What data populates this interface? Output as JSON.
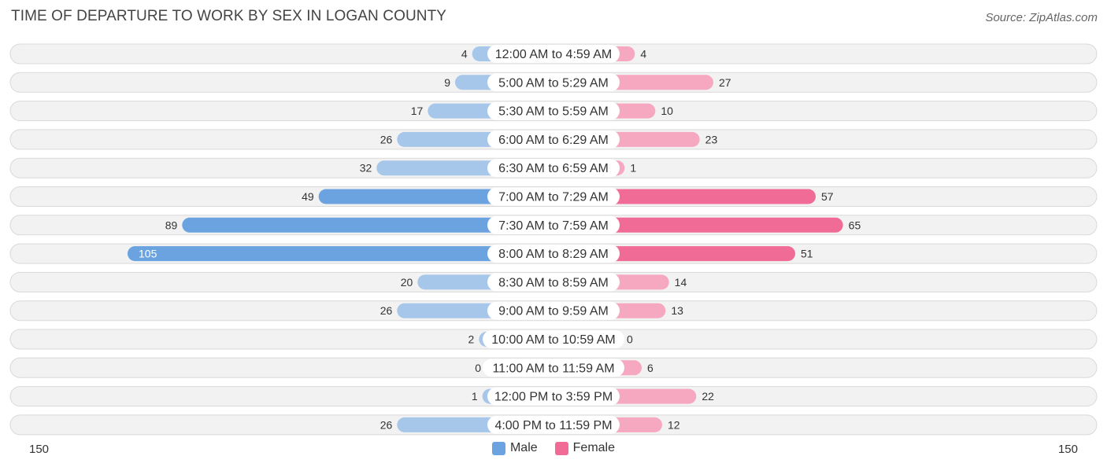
{
  "header": {
    "title": "TIME OF DEPARTURE TO WORK BY SEX IN LOGAN COUNTY",
    "source": "Source: ZipAtlas.com"
  },
  "colors": {
    "male": "#6aa3df",
    "male_light": "#a6c6ea",
    "female": "#f06b96",
    "female_light": "#f6a8c1"
  },
  "chart_data": {
    "type": "bar",
    "orientation": "horizontal-diverging",
    "title": "TIME OF DEPARTURE TO WORK BY SEX IN LOGAN COUNTY",
    "categories": [
      "12:00 AM to 4:59 AM",
      "5:00 AM to 5:29 AM",
      "5:30 AM to 5:59 AM",
      "6:00 AM to 6:29 AM",
      "6:30 AM to 6:59 AM",
      "7:00 AM to 7:29 AM",
      "7:30 AM to 7:59 AM",
      "8:00 AM to 8:29 AM",
      "8:30 AM to 8:59 AM",
      "9:00 AM to 9:59 AM",
      "10:00 AM to 10:59 AM",
      "11:00 AM to 11:59 AM",
      "12:00 PM to 3:59 PM",
      "4:00 PM to 11:59 PM"
    ],
    "series": [
      {
        "name": "Male",
        "values": [
          4,
          9,
          17,
          26,
          32,
          49,
          89,
          105,
          20,
          26,
          2,
          0,
          1,
          26
        ]
      },
      {
        "name": "Female",
        "values": [
          4,
          27,
          10,
          23,
          1,
          57,
          65,
          51,
          14,
          13,
          0,
          6,
          22,
          12
        ]
      }
    ],
    "axis": {
      "min_label": "150",
      "max_label": "150",
      "range": [
        -150,
        150
      ]
    },
    "legend": {
      "position": "bottom-center",
      "entries": [
        "Male",
        "Female"
      ]
    }
  }
}
